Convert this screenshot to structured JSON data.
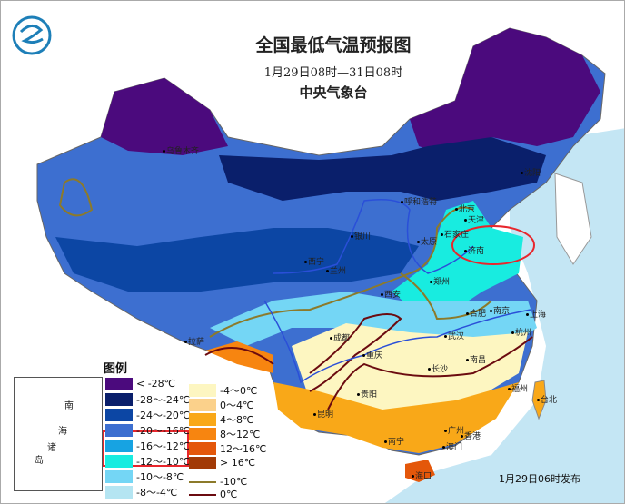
{
  "header": {
    "title": "全国最低气温预报图",
    "period": "1月29日08时—31日08时",
    "agency": "中央气象台",
    "logo_icon": "cma-logo-icon"
  },
  "legend": {
    "title": "图例",
    "cold_items": [
      {
        "label": "< -28℃",
        "color": "#4b0a7d"
      },
      {
        "label": "-28～-24℃",
        "color": "#0a1f6b"
      },
      {
        "label": "-24～-20℃",
        "color": "#0c46a4"
      },
      {
        "label": "-20～-16℃",
        "color": "#3d6fd0"
      },
      {
        "label": "-16～-12℃",
        "color": "#17a3e2"
      },
      {
        "label": "-12～-10℃",
        "color": "#18ece0"
      },
      {
        "label": "-10～-8℃",
        "color": "#74d6f5"
      },
      {
        "label": "-8～-4℃",
        "color": "#b5e5f2"
      }
    ],
    "warm_items": [
      {
        "label": "-4～0℃",
        "color": "#fdf6c1"
      },
      {
        "label": "0～4℃",
        "color": "#fbd18b"
      },
      {
        "label": "4～8℃",
        "color": "#f9a818"
      },
      {
        "label": "8～12℃",
        "color": "#f78510"
      },
      {
        "label": "12～16℃",
        "color": "#e4570a"
      },
      {
        "label": "> 16℃",
        "color": "#a23a06"
      }
    ],
    "lines": [
      {
        "label": "-10℃",
        "color": "#8c7a2a"
      },
      {
        "label": "0℃",
        "color": "#6b0b10"
      }
    ]
  },
  "inset": {
    "labels": [
      "南",
      "海",
      "诸",
      "岛"
    ]
  },
  "cities": [
    "沈阳",
    "北京",
    "天津",
    "呼和浩特",
    "银川",
    "太原",
    "石家庄",
    "济南",
    "西宁",
    "兰州",
    "郑州",
    "西安",
    "合肥",
    "南京",
    "上海",
    "杭州",
    "拉萨",
    "成都",
    "重庆",
    "武汉",
    "长沙",
    "南昌",
    "贵阳",
    "昆明",
    "福州",
    "台北",
    "南宁",
    "广州",
    "香港",
    "澳门",
    "海口",
    "乌鲁木齐"
  ],
  "issued": "1月29日06时发布",
  "highlight_color": "#e8262c"
}
